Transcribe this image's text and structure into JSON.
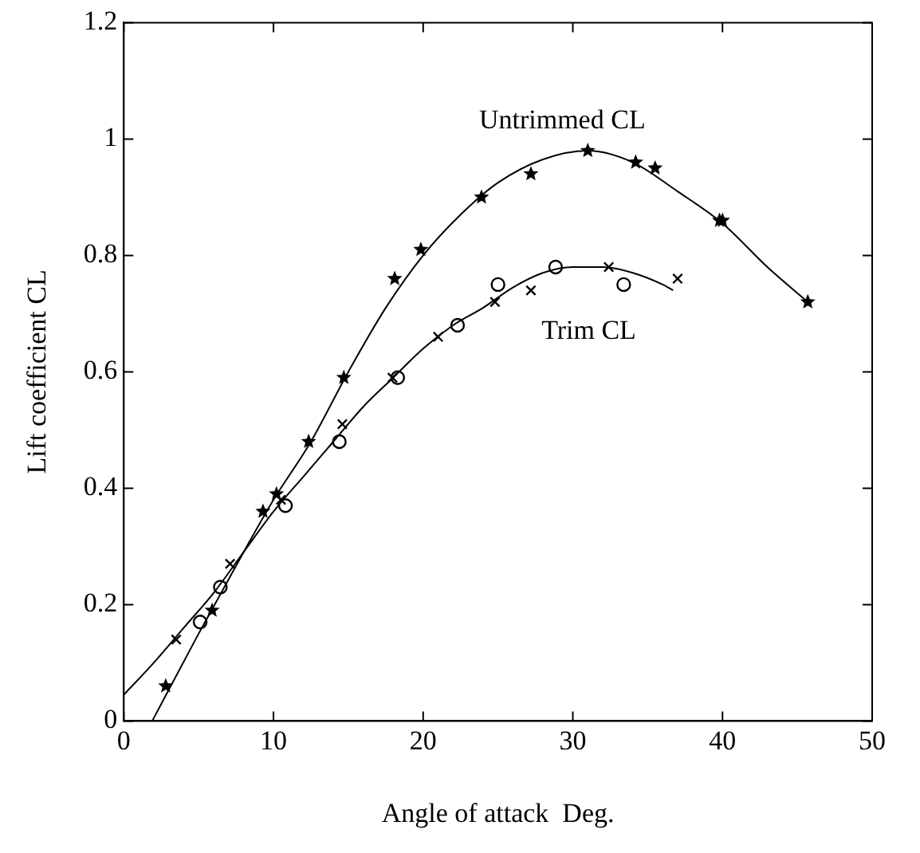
{
  "chart_data": {
    "type": "scatter",
    "xlabel": "Angle of attack  Deg.",
    "ylabel": "Lift coefficient CL",
    "xlim": [
      0,
      50
    ],
    "xticks": [
      0,
      10,
      20,
      30,
      40,
      50
    ],
    "ylim": [
      0,
      1.2
    ],
    "yticks": [
      0,
      0.2,
      0.4,
      0.6,
      0.8,
      1,
      1.2
    ],
    "grid": false,
    "legend": false,
    "series": [
      {
        "marker": "star",
        "color": "#000000",
        "x": [
          2.8,
          5.9,
          9.3,
          10.2,
          12.35,
          14.7,
          18.1,
          19.85,
          23.9,
          27.2,
          31,
          34.2,
          35.5,
          39.8,
          40,
          45.7
        ],
        "values": [
          0.06,
          0.19,
          0.36,
          0.39,
          0.48,
          0.59,
          0.76,
          0.81,
          0.9,
          0.94,
          0.98,
          0.96,
          0.95,
          0.86,
          0.86,
          0.72
        ]
      },
      {
        "marker": "cross",
        "color": "#000000",
        "x": [
          3.5,
          7.1,
          10.5,
          14.6,
          17.95,
          21,
          24.8,
          27.2,
          32.4,
          37
        ],
        "values": [
          0.14,
          0.27,
          0.38,
          0.51,
          0.59,
          0.66,
          0.72,
          0.74,
          0.78,
          0.76
        ]
      },
      {
        "marker": "circle",
        "color": "#000000",
        "x": [
          5.1,
          6.45,
          10.8,
          14.4,
          18.3,
          22.3,
          25,
          28.85,
          33.4
        ],
        "values": [
          0.17,
          0.23,
          0.37,
          0.48,
          0.59,
          0.68,
          0.75,
          0.78,
          0.75
        ]
      },
      {
        "type": "line",
        "name": "Untrimmed CL",
        "marker": "none",
        "color": "#000000",
        "x": [
          1.9,
          5,
          8,
          10,
          12.5,
          15,
          17.5,
          20,
          22.5,
          25,
          28,
          31,
          34,
          37,
          40,
          43,
          45.7
        ],
        "values": [
          0,
          0.15,
          0.29,
          0.38,
          0.48,
          0.6,
          0.71,
          0.8,
          0.87,
          0.925,
          0.965,
          0.98,
          0.96,
          0.91,
          0.855,
          0.78,
          0.72
        ]
      },
      {
        "type": "line",
        "name": "Trim CL",
        "marker": "none",
        "color": "#000000",
        "x": [
          0,
          2,
          4,
          6,
          8,
          10,
          12,
          14,
          16,
          18,
          20,
          22,
          24,
          26,
          28,
          30,
          32,
          34,
          36,
          36.7
        ],
        "values": [
          0.045,
          0.1,
          0.16,
          0.22,
          0.29,
          0.36,
          0.42,
          0.48,
          0.54,
          0.59,
          0.64,
          0.68,
          0.71,
          0.745,
          0.77,
          0.78,
          0.78,
          0.77,
          0.75,
          0.74
        ]
      }
    ]
  }
}
